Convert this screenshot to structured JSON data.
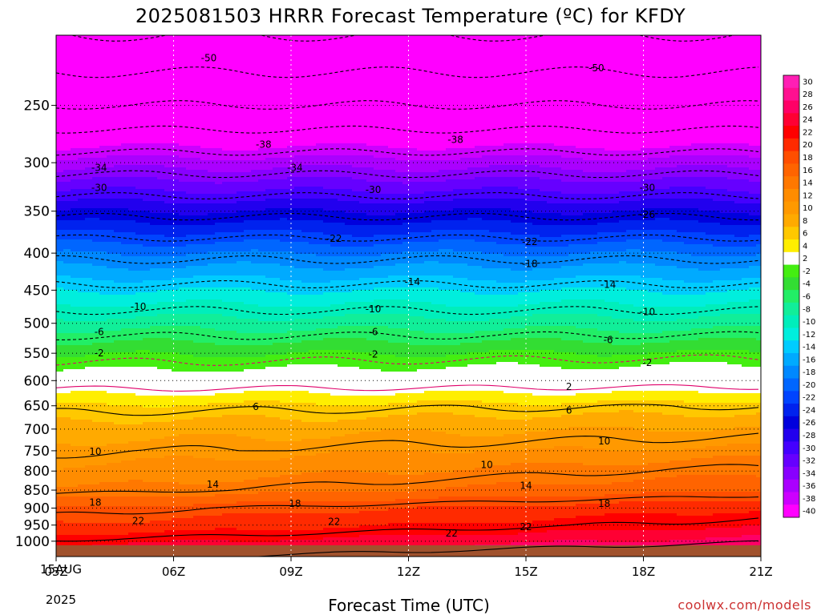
{
  "title": "2025081503 HRRR Forecast Temperature (ºC) for KFDY",
  "xlabel": "Forecast Time (UTC)",
  "credit": "coolwx.com/models",
  "start_date": {
    "day": "15AUG",
    "year": "2025"
  },
  "chart_data": {
    "type": "heatmap",
    "title": "2025081503 HRRR Forecast Temperature (ºC) for KFDY",
    "xlabel": "Forecast Time (UTC)",
    "ylabel": "",
    "x_ticks": [
      "03Z",
      "06Z",
      "09Z",
      "12Z",
      "15Z",
      "18Z",
      "21Z"
    ],
    "x_hours": [
      3,
      6,
      9,
      12,
      15,
      18,
      21
    ],
    "xlim": [
      3,
      21
    ],
    "y_axis": "pressure (log, inverted)",
    "y_ticks": [
      250,
      300,
      350,
      400,
      450,
      500,
      550,
      600,
      650,
      700,
      750,
      800,
      850,
      900,
      950,
      1000
    ],
    "ylim": [
      200,
      1050
    ],
    "underground_color": "#a0522d",
    "grid": "dotted",
    "colorbar": {
      "labels": [
        "30",
        "28",
        "26",
        "24",
        "22",
        "20",
        "18",
        "16",
        "14",
        "12",
        "10",
        "8",
        "6",
        "4",
        "2",
        "-2",
        "-4",
        "-6",
        "-8",
        "-10",
        "-12",
        "-14",
        "-16",
        "-18",
        "-20",
        "-22",
        "-24",
        "-26",
        "-28",
        "-30",
        "-32",
        "-34",
        "-36",
        "-38",
        "-40"
      ],
      "colors": [
        "#ff1fb4",
        "#ff1090",
        "#ff0066",
        "#ff0033",
        "#ff0000",
        "#ff2a00",
        "#ff4e00",
        "#ff6400",
        "#ff7800",
        "#ff8c00",
        "#ff9900",
        "#ffaa00",
        "#ffc800",
        "#ffee00",
        "#ffffff",
        "#44ee11",
        "#33dd33",
        "#22ee66",
        "#11ee99",
        "#00eebb",
        "#00eedd",
        "#00ccff",
        "#00aaff",
        "#0088ff",
        "#0066ff",
        "#0044ff",
        "#0022ee",
        "#0000dd",
        "#2200ee",
        "#4400ff",
        "#6600ff",
        "#8800ff",
        "#aa00ff",
        "#cc00ff",
        "#ff00ff"
      ],
      "ranges": [
        [
          29,
          99
        ],
        [
          27,
          29
        ],
        [
          25,
          27
        ],
        [
          23,
          25
        ],
        [
          21,
          23
        ],
        [
          19,
          21
        ],
        [
          17,
          19
        ],
        [
          15,
          17
        ],
        [
          13,
          15
        ],
        [
          11,
          13
        ],
        [
          9,
          11
        ],
        [
          7,
          9
        ],
        [
          5,
          7
        ],
        [
          3,
          5
        ],
        [
          -1,
          3
        ],
        [
          -3,
          -1
        ],
        [
          -5,
          -3
        ],
        [
          -7,
          -5
        ],
        [
          -9,
          -7
        ],
        [
          -11,
          -9
        ],
        [
          -13,
          -11
        ],
        [
          -15,
          -13
        ],
        [
          -17,
          -15
        ],
        [
          -19,
          -17
        ],
        [
          -21,
          -19
        ],
        [
          -23,
          -21
        ],
        [
          -25,
          -23
        ],
        [
          -27,
          -25
        ],
        [
          -29,
          -27
        ],
        [
          -31,
          -29
        ],
        [
          -33,
          -31
        ],
        [
          -35,
          -33
        ],
        [
          -37,
          -35
        ],
        [
          -39,
          -37
        ],
        [
          -99,
          -39
        ]
      ]
    },
    "profile": {
      "pressure": [
        200,
        250,
        300,
        350,
        400,
        450,
        500,
        550,
        600,
        650,
        700,
        750,
        800,
        850,
        900,
        950,
        1000
      ],
      "temperature": [
        -54,
        -46,
        -36,
        -27,
        -19,
        -13,
        -8,
        -3,
        1,
        6,
        9,
        11,
        13,
        15,
        19,
        21,
        24
      ]
    },
    "contour_labels": [
      {
        "t": "-50",
        "x": 6.9,
        "p": 215
      },
      {
        "t": "-50",
        "x": 16.8,
        "p": 222
      },
      {
        "t": "-38",
        "x": 8.3,
        "p": 283
      },
      {
        "t": "-38",
        "x": 13.2,
        "p": 279
      },
      {
        "t": "-34",
        "x": 4.1,
        "p": 305
      },
      {
        "t": "-34",
        "x": 9.1,
        "p": 305
      },
      {
        "t": "-30",
        "x": 4.1,
        "p": 325
      },
      {
        "t": "-30",
        "x": 11.1,
        "p": 327
      },
      {
        "t": "-30",
        "x": 18.1,
        "p": 325
      },
      {
        "t": "-26",
        "x": 18.1,
        "p": 354
      },
      {
        "t": "-22",
        "x": 10.1,
        "p": 382
      },
      {
        "t": "-22",
        "x": 15.1,
        "p": 386
      },
      {
        "t": "-18",
        "x": 15.1,
        "p": 414
      },
      {
        "t": "-14",
        "x": 12.1,
        "p": 438
      },
      {
        "t": "-14",
        "x": 17.1,
        "p": 442
      },
      {
        "t": "-10",
        "x": 5.1,
        "p": 474
      },
      {
        "t": "-10",
        "x": 11.1,
        "p": 478
      },
      {
        "t": "-10",
        "x": 18.1,
        "p": 482
      },
      {
        "t": "-6",
        "x": 4.1,
        "p": 514
      },
      {
        "t": "-6",
        "x": 11.1,
        "p": 514
      },
      {
        "t": "-6",
        "x": 17.1,
        "p": 527
      },
      {
        "t": "-2",
        "x": 4.1,
        "p": 550
      },
      {
        "t": "-2",
        "x": 11.1,
        "p": 552
      },
      {
        "t": "-2",
        "x": 18.1,
        "p": 567
      },
      {
        "t": "2",
        "x": 16.1,
        "p": 612
      },
      {
        "t": "6",
        "x": 8.1,
        "p": 652
      },
      {
        "t": "6",
        "x": 16.1,
        "p": 660
      },
      {
        "t": "10",
        "x": 4.0,
        "p": 752
      },
      {
        "t": "10",
        "x": 14.0,
        "p": 784
      },
      {
        "t": "10",
        "x": 17.0,
        "p": 728
      },
      {
        "t": "14",
        "x": 7.0,
        "p": 835
      },
      {
        "t": "14",
        "x": 15.0,
        "p": 838
      },
      {
        "t": "18",
        "x": 4.0,
        "p": 884
      },
      {
        "t": "18",
        "x": 9.1,
        "p": 888
      },
      {
        "t": "18",
        "x": 17.0,
        "p": 888
      },
      {
        "t": "22",
        "x": 5.1,
        "p": 937
      },
      {
        "t": "22",
        "x": 10.1,
        "p": 940
      },
      {
        "t": "22",
        "x": 13.1,
        "p": 975
      },
      {
        "t": "22",
        "x": 15.0,
        "p": 955
      }
    ]
  }
}
